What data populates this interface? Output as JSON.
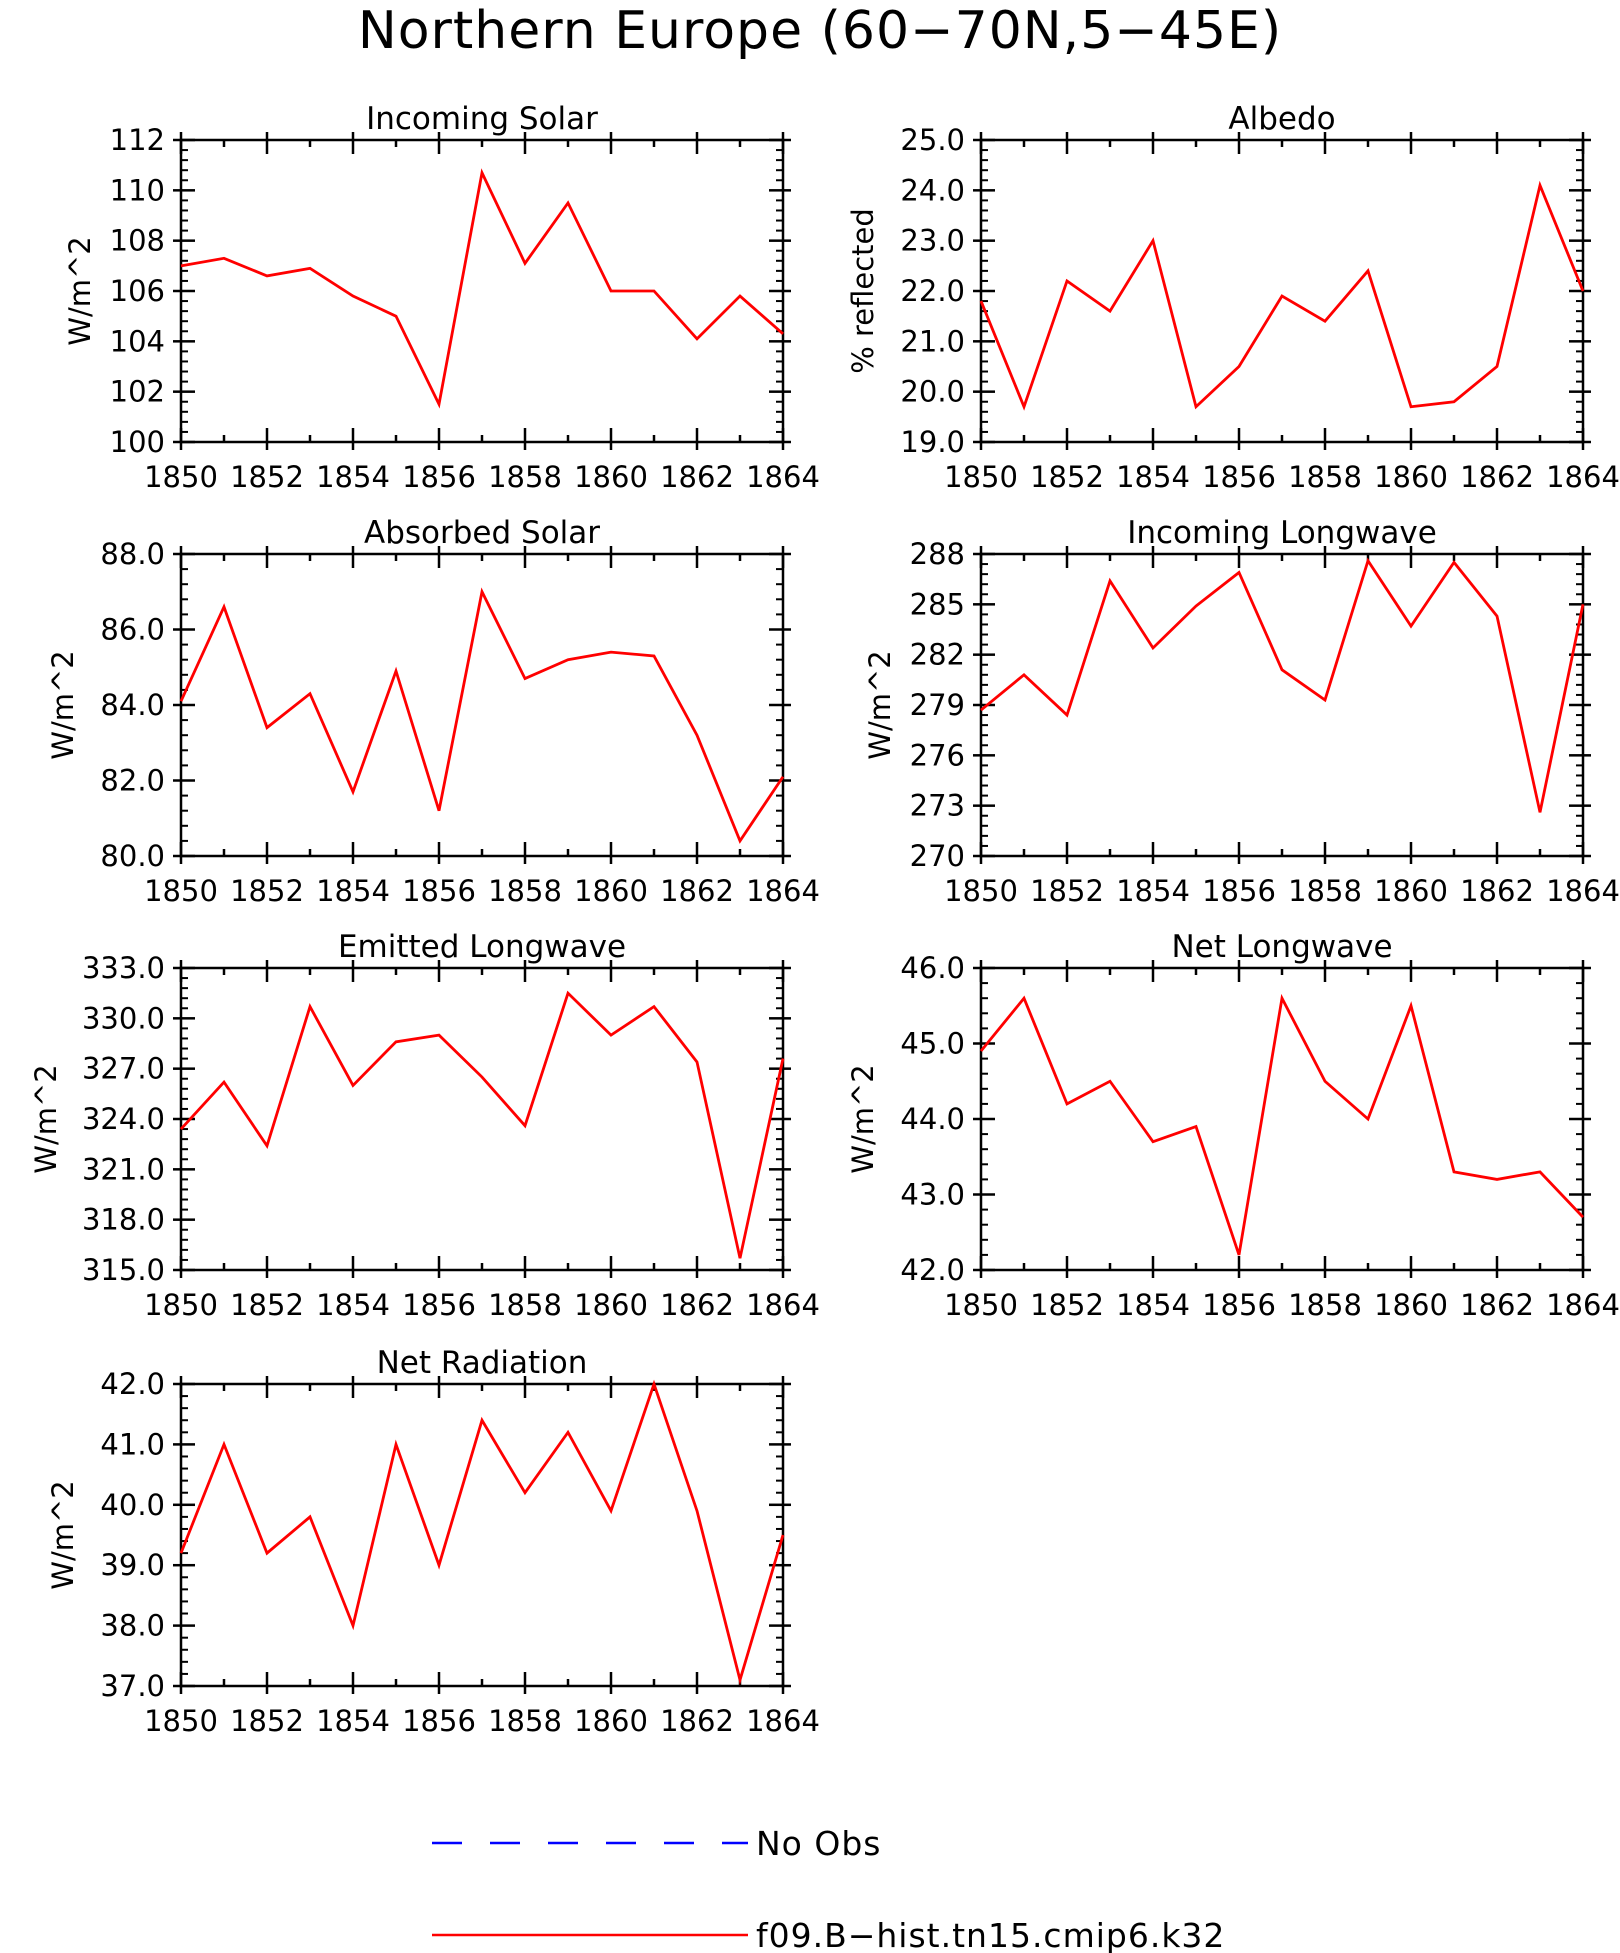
{
  "page_title": "Northern Europe (60−70N,5−45E)",
  "colors": {
    "model": "#ff0000",
    "obs": "#0000ff",
    "axes": "#000000",
    "background": "#ffffff"
  },
  "legend": {
    "items": [
      {
        "label": "No Obs",
        "style": "dashed",
        "color": "#0000ff"
      },
      {
        "label": "f09.B−hist.tn15.cmip6.k32",
        "style": "solid",
        "color": "#ff0000"
      }
    ]
  },
  "chart_data": [
    {
      "type": "line",
      "title": "Incoming Solar",
      "xlabel": "",
      "ylabel": "W/m^2",
      "x": [
        1850,
        1851,
        1852,
        1853,
        1854,
        1855,
        1856,
        1857,
        1858,
        1859,
        1860,
        1861,
        1862,
        1863,
        1864
      ],
      "xlim": [
        1850,
        1864
      ],
      "xticks": [
        "1850",
        "1852",
        "1854",
        "1856",
        "1858",
        "1860",
        "1862",
        "1864"
      ],
      "ylim": [
        100,
        112
      ],
      "yticks": [
        "100",
        "102",
        "104",
        "106",
        "108",
        "110",
        "112"
      ],
      "grid": false,
      "series": [
        {
          "name": "f09.B−hist.tn15.cmip6.k32",
          "values": [
            107.0,
            107.3,
            106.6,
            106.9,
            105.8,
            105.0,
            101.5,
            110.7,
            107.1,
            109.5,
            106.0,
            106.0,
            104.1,
            105.8,
            104.3
          ]
        }
      ]
    },
    {
      "type": "line",
      "title": "Albedo",
      "xlabel": "",
      "ylabel": "% reflected",
      "x": [
        1850,
        1851,
        1852,
        1853,
        1854,
        1855,
        1856,
        1857,
        1858,
        1859,
        1860,
        1861,
        1862,
        1863,
        1864
      ],
      "xlim": [
        1850,
        1864
      ],
      "xticks": [
        "1850",
        "1852",
        "1854",
        "1856",
        "1858",
        "1860",
        "1862",
        "1864"
      ],
      "ylim": [
        19.0,
        25.0
      ],
      "yticks": [
        "19.0",
        "20.0",
        "21.0",
        "22.0",
        "23.0",
        "24.0",
        "25.0"
      ],
      "grid": false,
      "series": [
        {
          "name": "f09.B−hist.tn15.cmip6.k32",
          "values": [
            21.8,
            19.7,
            22.2,
            21.6,
            23.0,
            19.7,
            20.5,
            21.9,
            21.4,
            22.4,
            19.7,
            19.8,
            20.5,
            24.1,
            22.0
          ]
        }
      ]
    },
    {
      "type": "line",
      "title": "Absorbed Solar",
      "xlabel": "",
      "ylabel": "W/m^2",
      "x": [
        1850,
        1851,
        1852,
        1853,
        1854,
        1855,
        1856,
        1857,
        1858,
        1859,
        1860,
        1861,
        1862,
        1863,
        1864
      ],
      "xlim": [
        1850,
        1864
      ],
      "xticks": [
        "1850",
        "1852",
        "1854",
        "1856",
        "1858",
        "1860",
        "1862",
        "1864"
      ],
      "ylim": [
        80.0,
        88.0
      ],
      "yticks": [
        "80.0",
        "82.0",
        "84.0",
        "86.0",
        "88.0"
      ],
      "grid": false,
      "series": [
        {
          "name": "f09.B−hist.tn15.cmip6.k32",
          "values": [
            84.1,
            86.6,
            83.4,
            84.3,
            81.7,
            84.9,
            81.2,
            87.0,
            84.7,
            85.2,
            85.4,
            85.3,
            83.2,
            80.4,
            82.1
          ]
        }
      ]
    },
    {
      "type": "line",
      "title": "Incoming Longwave",
      "xlabel": "",
      "ylabel": "W/m^2",
      "x": [
        1850,
        1851,
        1852,
        1853,
        1854,
        1855,
        1856,
        1857,
        1858,
        1859,
        1860,
        1861,
        1862,
        1863,
        1864
      ],
      "xlim": [
        1850,
        1864
      ],
      "xticks": [
        "1850",
        "1852",
        "1854",
        "1856",
        "1858",
        "1860",
        "1862",
        "1864"
      ],
      "ylim": [
        270,
        288
      ],
      "yticks": [
        "270",
        "273",
        "276",
        "279",
        "282",
        "285",
        "288"
      ],
      "grid": false,
      "series": [
        {
          "name": "f09.B−hist.tn15.cmip6.k32",
          "values": [
            278.7,
            280.8,
            278.4,
            286.4,
            282.4,
            284.9,
            286.9,
            281.1,
            279.3,
            287.6,
            283.7,
            287.5,
            284.3,
            272.6,
            285.0
          ]
        }
      ]
    },
    {
      "type": "line",
      "title": "Emitted Longwave",
      "xlabel": "",
      "ylabel": "W/m^2",
      "x": [
        1850,
        1851,
        1852,
        1853,
        1854,
        1855,
        1856,
        1857,
        1858,
        1859,
        1860,
        1861,
        1862,
        1863,
        1864
      ],
      "xlim": [
        1850,
        1864
      ],
      "xticks": [
        "1850",
        "1852",
        "1854",
        "1856",
        "1858",
        "1860",
        "1862",
        "1864"
      ],
      "ylim": [
        315.0,
        333.0
      ],
      "yticks": [
        "315.0",
        "318.0",
        "321.0",
        "324.0",
        "327.0",
        "330.0",
        "333.0"
      ],
      "grid": false,
      "series": [
        {
          "name": "f09.B−hist.tn15.cmip6.k32",
          "values": [
            323.4,
            326.2,
            322.4,
            330.7,
            326.0,
            328.6,
            329.0,
            326.5,
            323.6,
            331.5,
            329.0,
            330.7,
            327.4,
            315.7,
            327.6
          ]
        }
      ]
    },
    {
      "type": "line",
      "title": "Net Longwave",
      "xlabel": "",
      "ylabel": "W/m^2",
      "x": [
        1850,
        1851,
        1852,
        1853,
        1854,
        1855,
        1856,
        1857,
        1858,
        1859,
        1860,
        1861,
        1862,
        1863,
        1864
      ],
      "xlim": [
        1850,
        1864
      ],
      "xticks": [
        "1850",
        "1852",
        "1854",
        "1856",
        "1858",
        "1860",
        "1862",
        "1864"
      ],
      "ylim": [
        42.0,
        46.0
      ],
      "yticks": [
        "42.0",
        "43.0",
        "44.0",
        "45.0",
        "46.0"
      ],
      "grid": false,
      "series": [
        {
          "name": "f09.B−hist.tn15.cmip6.k32",
          "values": [
            44.9,
            45.6,
            44.2,
            44.5,
            43.7,
            43.9,
            42.2,
            45.6,
            44.5,
            44.0,
            45.5,
            43.3,
            43.2,
            43.3,
            42.7
          ]
        }
      ]
    },
    {
      "type": "line",
      "title": "Net Radiation",
      "xlabel": "",
      "ylabel": "W/m^2",
      "x": [
        1850,
        1851,
        1852,
        1853,
        1854,
        1855,
        1856,
        1857,
        1858,
        1859,
        1860,
        1861,
        1862,
        1863,
        1864
      ],
      "xlim": [
        1850,
        1864
      ],
      "xticks": [
        "1850",
        "1852",
        "1854",
        "1856",
        "1858",
        "1860",
        "1862",
        "1864"
      ],
      "ylim": [
        37.0,
        42.0
      ],
      "yticks": [
        "37.0",
        "38.0",
        "39.0",
        "40.0",
        "41.0",
        "42.0"
      ],
      "grid": false,
      "series": [
        {
          "name": "f09.B−hist.tn15.cmip6.k32",
          "values": [
            39.2,
            41.0,
            39.2,
            39.8,
            38.0,
            41.0,
            39.0,
            41.4,
            40.2,
            41.2,
            39.9,
            42.0,
            39.9,
            37.1,
            39.5
          ]
        }
      ]
    }
  ]
}
